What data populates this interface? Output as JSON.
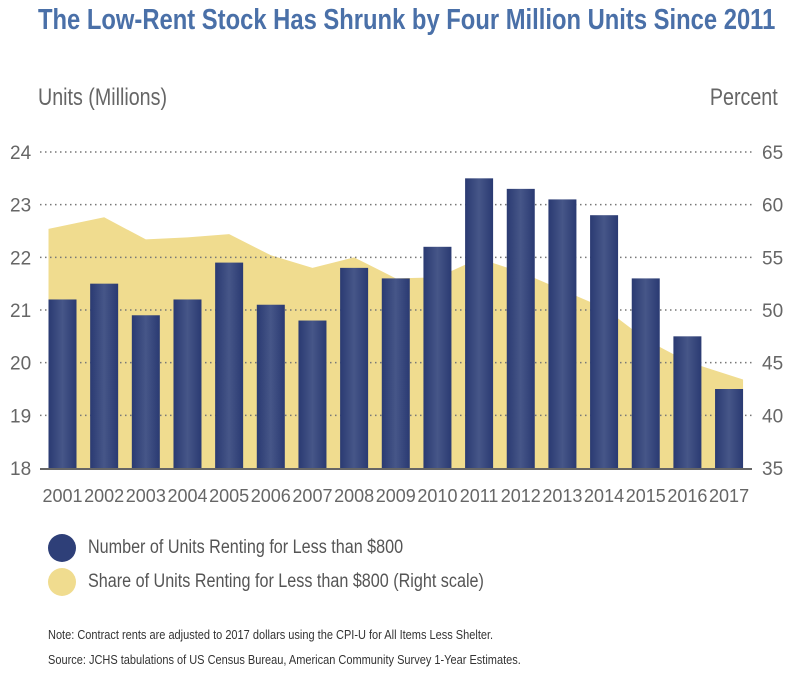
{
  "chart_data": {
    "type": "bar+area",
    "title": "The Low-Rent Stock Has Shrunk by Four Million Units Since 2011",
    "ylabel_left": "Units (Millions)",
    "ylabel_right": "Percent",
    "categories": [
      "2001",
      "2002",
      "2003",
      "2004",
      "2005",
      "2006",
      "2007",
      "2008",
      "2009",
      "2010",
      "2011",
      "2012",
      "2013",
      "2014",
      "2015",
      "2016",
      "2017"
    ],
    "ylim_left": [
      18,
      24
    ],
    "yticks_left": [
      "18",
      "19",
      "20",
      "21",
      "22",
      "23",
      "24"
    ],
    "ylim_right": [
      35,
      65
    ],
    "yticks_right": [
      "35",
      "40",
      "45",
      "50",
      "55",
      "60",
      "65"
    ],
    "grid": "horizontal dotted",
    "legend_position": "bottom-left",
    "series": [
      {
        "name": "Number of Units Renting for Less than $800",
        "type": "bar",
        "axis": "left",
        "color": "#2e3f78",
        "values": [
          21.2,
          21.5,
          20.9,
          21.2,
          21.9,
          21.1,
          20.8,
          21.8,
          21.6,
          22.2,
          23.5,
          23.3,
          23.1,
          22.8,
          21.6,
          20.5,
          19.5
        ]
      },
      {
        "name": "Share of Units Renting for Less than $800 (Right scale)",
        "type": "area",
        "axis": "right",
        "color": "#f0dc8f",
        "values": [
          57.7,
          58.8,
          56.7,
          56.9,
          57.2,
          55.2,
          54.0,
          55.0,
          53.0,
          53.1,
          54.9,
          53.6,
          51.9,
          50.2,
          47.2,
          45.1,
          43.4
        ]
      }
    ]
  },
  "notes": {
    "note": "Note: Contract rents are adjusted to 2017 dollars using the CPI-U for All Items Less Shelter.",
    "source": "Source: JCHS tabulations of US Census Bureau, American Community Survey 1-Year Estimates."
  }
}
